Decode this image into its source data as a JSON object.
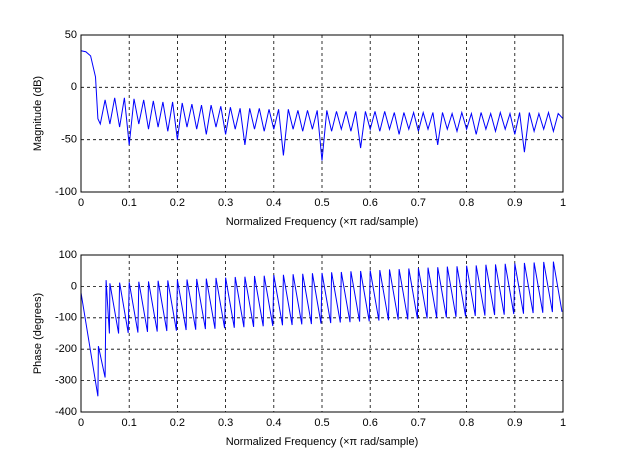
{
  "chart_data": [
    {
      "type": "line",
      "ylabel": "Magnitude (dB)",
      "xlabel": "Normalized Frequency  (×π rad/sample)",
      "color": "#0000ff",
      "grid": true,
      "xlim": [
        0,
        1
      ],
      "xticks": [
        0,
        0.1,
        0.2,
        0.3,
        0.4,
        0.5,
        0.6,
        0.7,
        0.8,
        0.9,
        1
      ],
      "ylim": [
        -100,
        50
      ],
      "yticks": [
        -100,
        -50,
        0,
        50
      ],
      "x": [
        0,
        0.01,
        0.02,
        0.03,
        0.035,
        0.04,
        0.05,
        0.06,
        0.07,
        0.08,
        0.09,
        0.1,
        0.11,
        0.12,
        0.13,
        0.14,
        0.15,
        0.16,
        0.17,
        0.18,
        0.19,
        0.2,
        0.21,
        0.22,
        0.23,
        0.24,
        0.25,
        0.26,
        0.27,
        0.28,
        0.29,
        0.3,
        0.31,
        0.32,
        0.33,
        0.34,
        0.35,
        0.36,
        0.37,
        0.38,
        0.39,
        0.4,
        0.41,
        0.42,
        0.43,
        0.44,
        0.45,
        0.46,
        0.47,
        0.48,
        0.49,
        0.5,
        0.51,
        0.52,
        0.53,
        0.54,
        0.55,
        0.56,
        0.57,
        0.58,
        0.59,
        0.6,
        0.61,
        0.62,
        0.63,
        0.64,
        0.65,
        0.66,
        0.67,
        0.68,
        0.69,
        0.7,
        0.71,
        0.72,
        0.73,
        0.74,
        0.75,
        0.76,
        0.77,
        0.78,
        0.79,
        0.8,
        0.81,
        0.82,
        0.83,
        0.84,
        0.85,
        0.86,
        0.87,
        0.88,
        0.89,
        0.9,
        0.91,
        0.92,
        0.93,
        0.94,
        0.95,
        0.96,
        0.97,
        0.98,
        0.99,
        1
      ],
      "values": [
        35,
        34,
        30,
        10,
        -30,
        -35,
        -12,
        -35,
        -10,
        -38,
        -10,
        -55,
        -11,
        -35,
        -12,
        -40,
        -13,
        -38,
        -14,
        -42,
        -14,
        -50,
        -15,
        -38,
        -16,
        -40,
        -17,
        -45,
        -17,
        -38,
        -18,
        -45,
        -19,
        -40,
        -20,
        -55,
        -20,
        -40,
        -20,
        -42,
        -21,
        -40,
        -21,
        -65,
        -21,
        -40,
        -22,
        -42,
        -22,
        -40,
        -22,
        -70,
        -22,
        -42,
        -23,
        -40,
        -23,
        -42,
        -23,
        -58,
        -23,
        -40,
        -23,
        -42,
        -23,
        -40,
        -24,
        -45,
        -24,
        -40,
        -24,
        -42,
        -24,
        -40,
        -24,
        -55,
        -24,
        -40,
        -25,
        -42,
        -24,
        -40,
        -25,
        -45,
        -24,
        -40,
        -25,
        -42,
        -24,
        -40,
        -25,
        -45,
        -24,
        -62,
        -24,
        -42,
        -25,
        -40,
        -24,
        -42,
        -25,
        -30
      ]
    },
    {
      "type": "line",
      "ylabel": "Phase (degrees)",
      "xlabel": "Normalized Frequency  (×π rad/sample)",
      "color": "#0000ff",
      "grid": true,
      "xlim": [
        0,
        1
      ],
      "xticks": [
        0,
        0.1,
        0.2,
        0.3,
        0.4,
        0.5,
        0.6,
        0.7,
        0.8,
        0.9,
        1
      ],
      "ylim": [
        -400,
        100
      ],
      "yticks": [
        -400,
        -300,
        -200,
        -100,
        0,
        100
      ],
      "x": [
        0,
        0.035,
        0.036,
        0.05,
        0.052,
        0.059,
        0.06,
        0.078,
        0.08,
        0.098,
        0.1,
        0.118,
        0.12,
        0.138,
        0.14,
        0.158,
        0.16,
        0.178,
        0.18,
        0.198,
        0.2,
        0.218,
        0.22,
        0.238,
        0.24,
        0.258,
        0.26,
        0.278,
        0.28,
        0.298,
        0.3,
        0.318,
        0.32,
        0.338,
        0.34,
        0.358,
        0.36,
        0.378,
        0.38,
        0.398,
        0.4,
        0.418,
        0.42,
        0.438,
        0.44,
        0.458,
        0.46,
        0.478,
        0.48,
        0.498,
        0.5,
        0.518,
        0.52,
        0.538,
        0.54,
        0.558,
        0.56,
        0.578,
        0.58,
        0.598,
        0.6,
        0.618,
        0.62,
        0.638,
        0.64,
        0.658,
        0.66,
        0.678,
        0.68,
        0.698,
        0.7,
        0.718,
        0.72,
        0.738,
        0.74,
        0.758,
        0.76,
        0.778,
        0.78,
        0.798,
        0.8,
        0.818,
        0.82,
        0.838,
        0.84,
        0.858,
        0.86,
        0.878,
        0.88,
        0.898,
        0.9,
        0.918,
        0.92,
        0.938,
        0.94,
        0.958,
        0.96,
        0.978,
        0.98,
        0.998
      ],
      "values": [
        -20,
        -350,
        -190,
        -290,
        20,
        -150,
        10,
        -150,
        12,
        -148,
        13,
        -147,
        15,
        -145,
        16,
        -144,
        18,
        -142,
        19,
        -141,
        21,
        -139,
        22,
        -138,
        24,
        -136,
        25,
        -135,
        27,
        -133,
        28,
        -132,
        30,
        -130,
        31,
        -129,
        33,
        -127,
        34,
        -126,
        36,
        -124,
        37,
        -123,
        39,
        -121,
        40,
        -120,
        42,
        -118,
        43,
        -117,
        45,
        -115,
        46,
        -114,
        48,
        -112,
        49,
        -111,
        51,
        -109,
        52,
        -108,
        54,
        -106,
        55,
        -105,
        57,
        -103,
        58,
        -102,
        60,
        -100,
        61,
        -99,
        63,
        -97,
        64,
        -96,
        66,
        -94,
        67,
        -93,
        69,
        -91,
        70,
        -90,
        72,
        -88,
        73,
        -87,
        75,
        -85,
        76,
        -84,
        78,
        -82,
        79,
        -81
      ]
    }
  ]
}
